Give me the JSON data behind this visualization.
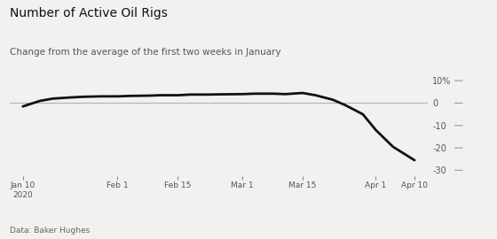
{
  "title": "Number of Active Oil Rigs",
  "subtitle": "Change from the average of the first two weeks in January",
  "footnote": "Data: Baker Hughes",
  "background_color": "#f2f1ef",
  "line_color": "#111111",
  "zero_line_color": "#b0b0b0",
  "tick_labels": [
    "Jan 10\n2020",
    "Feb 1",
    "Feb 15",
    "Mar 1",
    "Mar 15",
    "Apr 1",
    "Apr 10"
  ],
  "tick_dates_num": [
    10,
    32,
    46,
    61,
    75,
    92,
    101
  ],
  "yticks": [
    10,
    0,
    -10,
    -20,
    -30
  ],
  "ytick_labels": [
    "10%",
    "0",
    "-10",
    "-20",
    "-30"
  ],
  "ylim": [
    -34,
    14
  ],
  "xlim": [
    7,
    104
  ],
  "x_data": [
    10,
    14,
    17,
    21,
    24,
    28,
    32,
    35,
    39,
    42,
    46,
    49,
    53,
    56,
    61,
    64,
    68,
    71,
    75,
    78,
    82,
    85,
    89,
    92,
    96,
    101
  ],
  "y_data": [
    -1.5,
    1.0,
    2.0,
    2.5,
    2.8,
    3.0,
    3.0,
    3.2,
    3.3,
    3.5,
    3.5,
    3.8,
    3.8,
    3.9,
    4.0,
    4.2,
    4.2,
    4.0,
    4.5,
    3.5,
    1.5,
    -1.0,
    -5.0,
    -12.0,
    -19.5,
    -25.5
  ]
}
